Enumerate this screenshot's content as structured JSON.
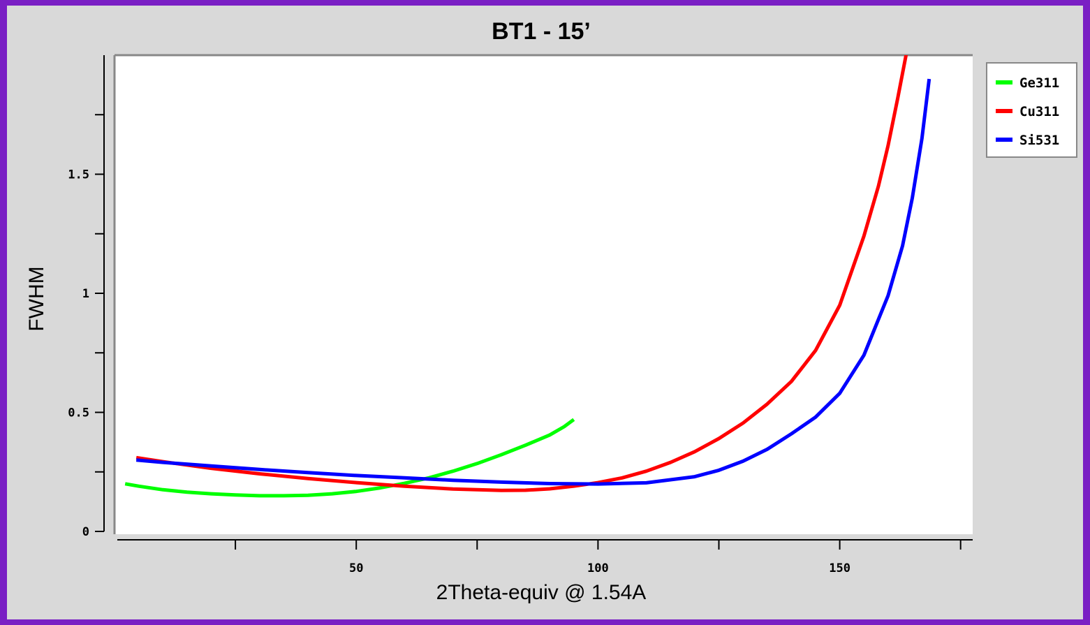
{
  "chart_data": {
    "type": "line",
    "title": "BT1 - 15’",
    "xlabel": "2Theta-equiv @ 1.54A",
    "ylabel": "FWHM",
    "xlim": [
      0,
      177.5
    ],
    "ylim": [
      0,
      2.0
    ],
    "x_ticks": [
      {
        "value": 25,
        "label": ""
      },
      {
        "value": 50,
        "label": "50"
      },
      {
        "value": 75,
        "label": ""
      },
      {
        "value": 100,
        "label": "100"
      },
      {
        "value": 125,
        "label": ""
      },
      {
        "value": 150,
        "label": "150"
      },
      {
        "value": 175,
        "label": ""
      }
    ],
    "y_ticks": [
      {
        "value": 0,
        "label": "0"
      },
      {
        "value": 0.25,
        "label": ""
      },
      {
        "value": 0.5,
        "label": "0.5"
      },
      {
        "value": 0.75,
        "label": ""
      },
      {
        "value": 1,
        "label": "1"
      },
      {
        "value": 1.25,
        "label": ""
      },
      {
        "value": 1.5,
        "label": "1.5"
      },
      {
        "value": 1.75,
        "label": ""
      }
    ],
    "grid": false,
    "legend_position": "top-right outside",
    "series": [
      {
        "name": "Ge311",
        "color": "#00ff00",
        "x": [
          2.2,
          5,
          10,
          15,
          20,
          25,
          30,
          35,
          40,
          45,
          50,
          55,
          60,
          65,
          70,
          75,
          80,
          85,
          90,
          93,
          95
        ],
        "y": [
          0.2,
          0.19,
          0.175,
          0.165,
          0.158,
          0.153,
          0.15,
          0.15,
          0.152,
          0.158,
          0.168,
          0.183,
          0.202,
          0.225,
          0.253,
          0.285,
          0.322,
          0.362,
          0.405,
          0.44,
          0.47
        ]
      },
      {
        "name": "Cu311",
        "color": "#ff0000",
        "x": [
          4.5,
          10,
          20,
          30,
          40,
          50,
          60,
          70,
          80,
          85,
          90,
          95,
          100,
          105,
          110,
          115,
          120,
          125,
          130,
          135,
          140,
          145,
          150,
          155,
          158,
          160,
          162,
          164
        ],
        "y": [
          0.31,
          0.293,
          0.265,
          0.242,
          0.222,
          0.205,
          0.19,
          0.178,
          0.172,
          0.173,
          0.179,
          0.19,
          0.205,
          0.225,
          0.253,
          0.29,
          0.335,
          0.39,
          0.455,
          0.535,
          0.63,
          0.76,
          0.95,
          1.24,
          1.45,
          1.62,
          1.82,
          2.03
        ]
      },
      {
        "name": "Si531",
        "color": "#0000ff",
        "x": [
          4.5,
          10,
          20,
          30,
          40,
          50,
          60,
          70,
          80,
          90,
          100,
          110,
          120,
          125,
          130,
          135,
          140,
          145,
          150,
          155,
          160,
          163,
          165,
          167,
          168.5
        ],
        "y": [
          0.3,
          0.29,
          0.275,
          0.26,
          0.247,
          0.235,
          0.225,
          0.215,
          0.207,
          0.201,
          0.199,
          0.204,
          0.23,
          0.257,
          0.295,
          0.345,
          0.41,
          0.48,
          0.58,
          0.74,
          0.99,
          1.2,
          1.4,
          1.65,
          1.9
        ]
      }
    ]
  }
}
